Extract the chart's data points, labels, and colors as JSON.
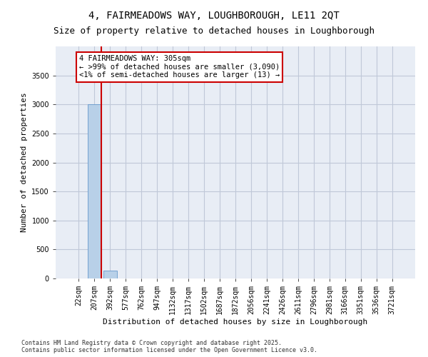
{
  "title1": "4, FAIRMEADOWS WAY, LOUGHBOROUGH, LE11 2QT",
  "title2": "Size of property relative to detached houses in Loughborough",
  "xlabel": "Distribution of detached houses by size in Loughborough",
  "ylabel": "Number of detached properties",
  "categories": [
    "22sqm",
    "207sqm",
    "392sqm",
    "577sqm",
    "762sqm",
    "947sqm",
    "1132sqm",
    "1317sqm",
    "1502sqm",
    "1687sqm",
    "1872sqm",
    "2056sqm",
    "2241sqm",
    "2426sqm",
    "2611sqm",
    "2796sqm",
    "2981sqm",
    "3166sqm",
    "3351sqm",
    "3536sqm",
    "3721sqm"
  ],
  "values": [
    0,
    3000,
    130,
    0,
    0,
    0,
    0,
    0,
    0,
    0,
    0,
    0,
    0,
    0,
    0,
    0,
    0,
    0,
    0,
    0,
    0
  ],
  "bar_color": "#b8d0e8",
  "bar_edgecolor": "#6699cc",
  "vline_color": "#cc0000",
  "annotation_text": "4 FAIRMEADOWS WAY: 305sqm\n← >99% of detached houses are smaller (3,090)\n<1% of semi-detached houses are larger (13) →",
  "annotation_box_color": "#cc0000",
  "ylim": [
    0,
    4000
  ],
  "yticks": [
    0,
    500,
    1000,
    1500,
    2000,
    2500,
    3000,
    3500
  ],
  "grid_color": "#c0c8d8",
  "bg_color": "#e8edf5",
  "footer1": "Contains HM Land Registry data © Crown copyright and database right 2025.",
  "footer2": "Contains public sector information licensed under the Open Government Licence v3.0.",
  "title_fontsize": 10,
  "subtitle_fontsize": 9,
  "tick_fontsize": 7,
  "ylabel_fontsize": 8,
  "xlabel_fontsize": 8,
  "annotation_fontsize": 7.5,
  "footer_fontsize": 6
}
